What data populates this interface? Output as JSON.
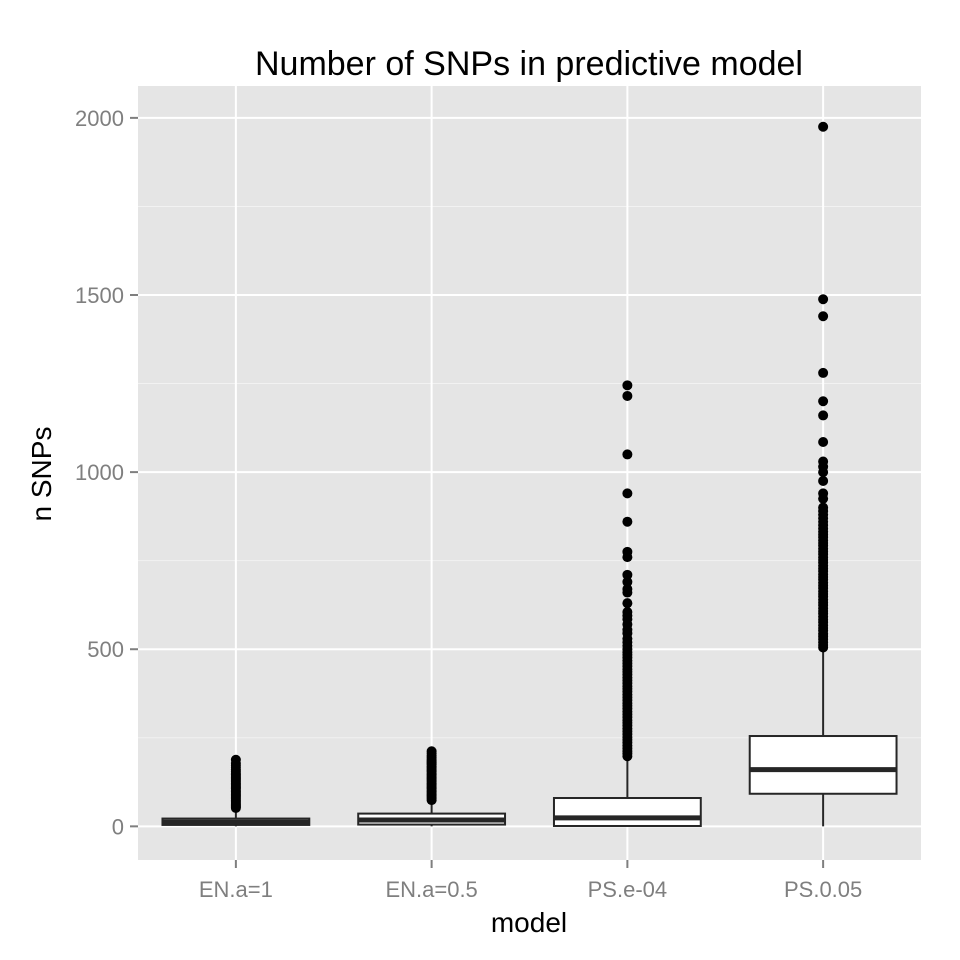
{
  "chart_data": {
    "type": "box",
    "title": "Number of SNPs in predictive model",
    "xlabel": "model",
    "ylabel": "n SNPs",
    "ylim": [
      -95,
      2090
    ],
    "yticks": [
      0,
      500,
      1000,
      1500,
      2000
    ],
    "grid": true,
    "colors": {
      "panel": "#e5e5e5",
      "grid": "#ffffff",
      "box_fill": "#ffffff",
      "box_stroke": "#262626",
      "outlier": "#000000",
      "tick_text": "#7f7f7f"
    },
    "categories": [
      "EN.a=1",
      "EN.a=0.5",
      "PS.e-04",
      "PS.0.05"
    ],
    "boxes": [
      {
        "category": "EN.a=1",
        "whisker_low": 0,
        "q1": 4,
        "median": 12,
        "q3": 22,
        "whisker_high": 50,
        "outliers": [
          52,
          55,
          58,
          62,
          66,
          70,
          74,
          78,
          82,
          86,
          90,
          94,
          98,
          102,
          106,
          110,
          114,
          118,
          122,
          126,
          130,
          134,
          138,
          142,
          146,
          150,
          155,
          160,
          166,
          172,
          178,
          188
        ]
      },
      {
        "category": "EN.a=0.5",
        "whisker_low": 0,
        "q1": 5,
        "median": 18,
        "q3": 36,
        "whisker_high": 72,
        "outliers": [
          74,
          78,
          82,
          86,
          90,
          94,
          98,
          102,
          106,
          110,
          114,
          118,
          122,
          126,
          130,
          134,
          138,
          142,
          146,
          150,
          154,
          158,
          162,
          166,
          170,
          174,
          178,
          182,
          186,
          190,
          195,
          200,
          206,
          212
        ]
      },
      {
        "category": "PS.e-04",
        "whisker_low": 0,
        "q1": 1,
        "median": 24,
        "q3": 80,
        "whisker_high": 195,
        "outliers": [
          198,
          205,
          212,
          220,
          228,
          236,
          244,
          252,
          260,
          268,
          276,
          284,
          292,
          300,
          308,
          316,
          324,
          332,
          340,
          348,
          356,
          364,
          372,
          380,
          388,
          396,
          404,
          412,
          420,
          428,
          436,
          444,
          452,
          460,
          468,
          476,
          484,
          492,
          500,
          510,
          520,
          530,
          545,
          555,
          570,
          585,
          595,
          605,
          630,
          660,
          670,
          690,
          710,
          760,
          775,
          860,
          940,
          1050,
          1215,
          1245
        ]
      },
      {
        "category": "PS.0.05",
        "whisker_low": 0,
        "q1": 92,
        "median": 160,
        "q3": 255,
        "whisker_high": 500,
        "outliers": [
          505,
          512,
          520,
          528,
          536,
          544,
          552,
          560,
          568,
          576,
          584,
          592,
          600,
          608,
          616,
          624,
          632,
          640,
          648,
          656,
          664,
          672,
          680,
          688,
          696,
          704,
          712,
          720,
          728,
          736,
          744,
          752,
          760,
          768,
          776,
          784,
          792,
          800,
          808,
          816,
          824,
          832,
          840,
          850,
          860,
          870,
          880,
          890,
          900,
          925,
          940,
          975,
          1000,
          1015,
          1030,
          1085,
          1160,
          1200,
          1280,
          1440,
          1488,
          1975
        ]
      }
    ]
  }
}
